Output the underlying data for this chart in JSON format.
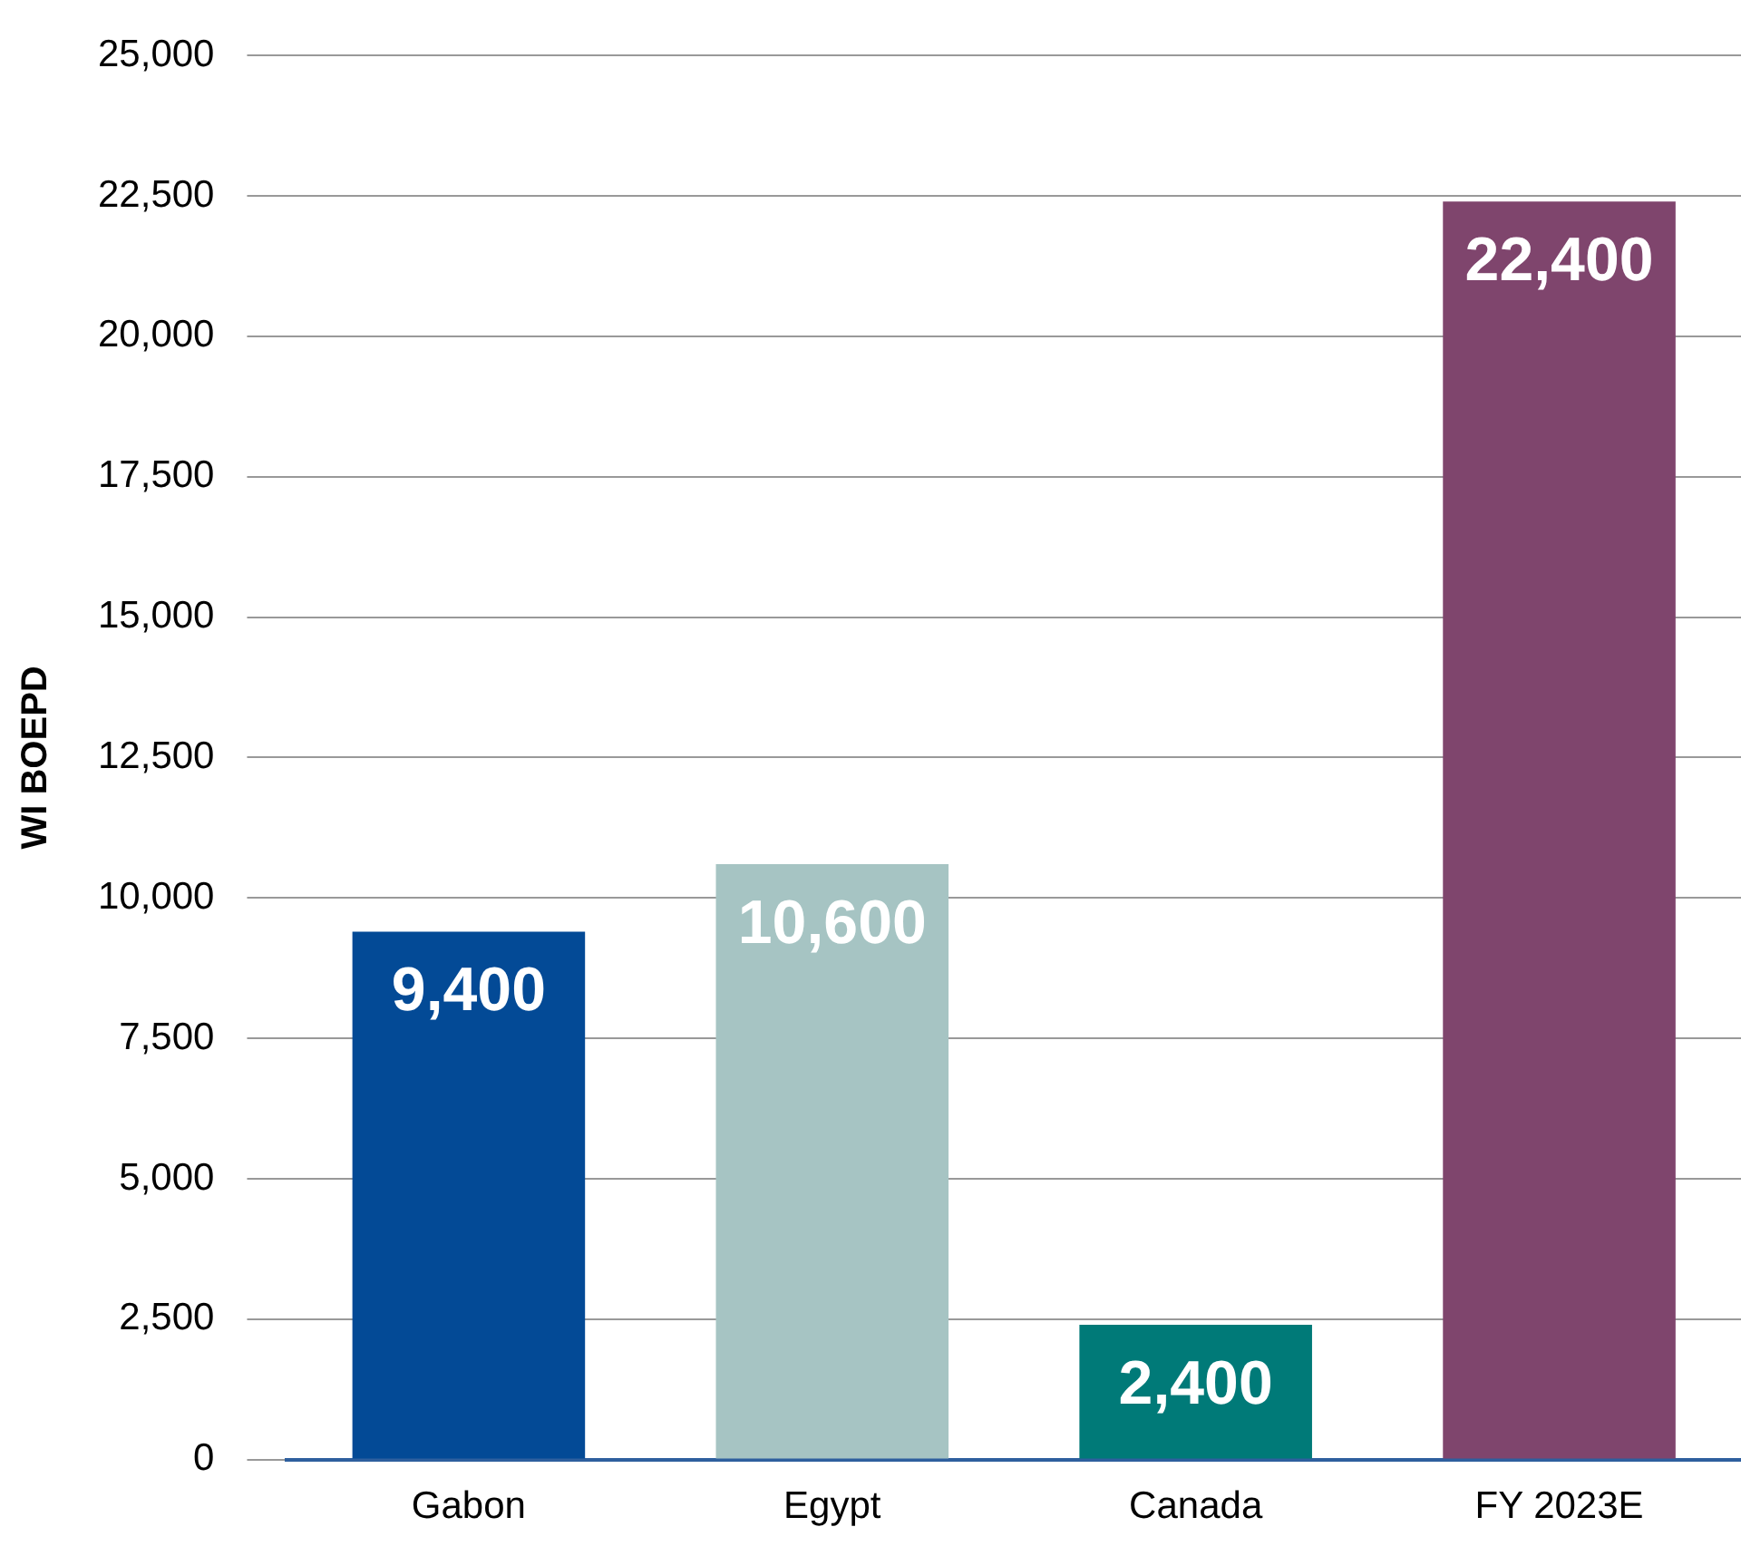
{
  "chart_data": {
    "type": "bar",
    "ylabel": "WI BOEPD",
    "categories": [
      "Gabon",
      "Egypt",
      "Canada",
      "FY 2023E"
    ],
    "values": [
      9400,
      10600,
      2400,
      22400
    ],
    "value_labels": [
      "9,400",
      "10,600",
      "2,400",
      "22,400"
    ],
    "colors": [
      "#034a96",
      "#a6c4c3",
      "#007a78",
      "#7f456d"
    ],
    "ylim": [
      0,
      25000
    ],
    "yticks": [
      0,
      {
        "value": 2500,
        "label": "2,500"
      },
      {
        "value": 5000,
        "label": "5,000"
      },
      {
        "value": 7500,
        "label": "7,500"
      },
      {
        "value": 10000,
        "label": "10,000"
      },
      {
        "value": 12500,
        "label": "12,500"
      },
      {
        "value": 15000,
        "label": "15,000"
      },
      {
        "value": 17500,
        "label": "17,500"
      },
      {
        "value": 20000,
        "label": "20,000"
      },
      {
        "value": 22500,
        "label": "22,500"
      },
      {
        "value": 25000,
        "label": "25,000"
      }
    ],
    "grid": "y",
    "legend": false
  }
}
